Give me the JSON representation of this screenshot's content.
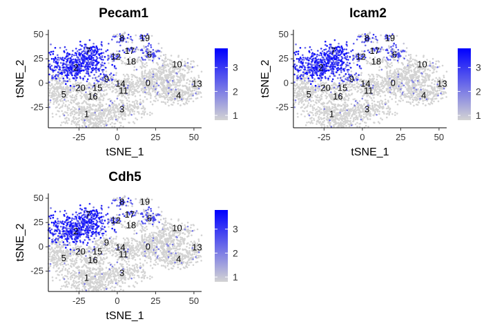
{
  "chart_data": [
    {
      "type": "scatter",
      "title": "Pecam1",
      "xlabel": "tSNE_1",
      "ylabel": "tSNE_2",
      "xlim": [
        -45,
        55
      ],
      "ylim": [
        -46,
        55
      ],
      "x_ticks": [
        "-25",
        "0",
        "25",
        "50"
      ],
      "y_ticks": [
        "50",
        "25",
        "0",
        "-25"
      ],
      "legend": {
        "placement": "right",
        "ticks": [
          "3",
          "2",
          "1"
        ],
        "range": [
          0.8,
          3.8
        ]
      },
      "high_clusters": [
        "2",
        "7"
      ],
      "mid_clusters": [
        "8",
        "6",
        "9",
        "12",
        "19",
        "17"
      ]
    },
    {
      "type": "scatter",
      "title": "Icam2",
      "xlabel": "tSNE_1",
      "ylabel": "tSNE_2",
      "xlim": [
        -45,
        55
      ],
      "ylim": [
        -46,
        55
      ],
      "x_ticks": [
        "-25",
        "0",
        "25",
        "50"
      ],
      "y_ticks": [
        "50",
        "25",
        "0",
        "-25"
      ],
      "legend": {
        "placement": "right",
        "ticks": [
          "3",
          "2",
          "1"
        ],
        "range": [
          0.8,
          3.8
        ]
      },
      "high_clusters": [
        "2",
        "7"
      ],
      "mid_clusters": [
        "8",
        "6",
        "9",
        "12",
        "19",
        "17"
      ]
    },
    {
      "type": "scatter",
      "title": "Cdh5",
      "xlabel": "tSNE_1",
      "ylabel": "tSNE_2",
      "xlim": [
        -45,
        55
      ],
      "ylim": [
        -46,
        55
      ],
      "x_ticks": [
        "-25",
        "0",
        "25",
        "50"
      ],
      "y_ticks": [
        "50",
        "25",
        "0",
        "-25"
      ],
      "legend": {
        "placement": "right",
        "ticks": [
          "3",
          "2",
          "1"
        ],
        "range": [
          0.8,
          3.8
        ]
      },
      "high_clusters": [
        "2",
        "7"
      ],
      "mid_clusters": [
        "8",
        "6",
        "12",
        "17"
      ]
    }
  ],
  "clusters": [
    {
      "label": "0",
      "x": 20,
      "y": 0
    },
    {
      "label": "1",
      "x": -20,
      "y": -32
    },
    {
      "label": "2",
      "x": -27,
      "y": 16
    },
    {
      "label": "3",
      "x": 3,
      "y": -27
    },
    {
      "label": "4",
      "x": 40,
      "y": -13
    },
    {
      "label": "5",
      "x": -35,
      "y": -12
    },
    {
      "label": "6",
      "x": 21,
      "y": 29
    },
    {
      "label": "7",
      "x": -19,
      "y": 33
    },
    {
      "label": "8",
      "x": 3,
      "y": 46
    },
    {
      "label": "9",
      "x": -7,
      "y": 4
    },
    {
      "label": "10",
      "x": 39,
      "y": 19
    },
    {
      "label": "11",
      "x": 4,
      "y": -8
    },
    {
      "label": "12",
      "x": -1,
      "y": 27
    },
    {
      "label": "13",
      "x": 52,
      "y": -1
    },
    {
      "label": "14",
      "x": 2,
      "y": -1
    },
    {
      "label": "15",
      "x": -13,
      "y": -5
    },
    {
      "label": "16",
      "x": -16,
      "y": -14
    },
    {
      "label": "17",
      "x": 8,
      "y": 33
    },
    {
      "label": "18",
      "x": 9,
      "y": 22
    },
    {
      "label": "19",
      "x": 18,
      "y": 46
    },
    {
      "label": "20",
      "x": -24,
      "y": -5
    }
  ],
  "colors": {
    "low": "#d3d3d3",
    "high": "#0000ff"
  }
}
